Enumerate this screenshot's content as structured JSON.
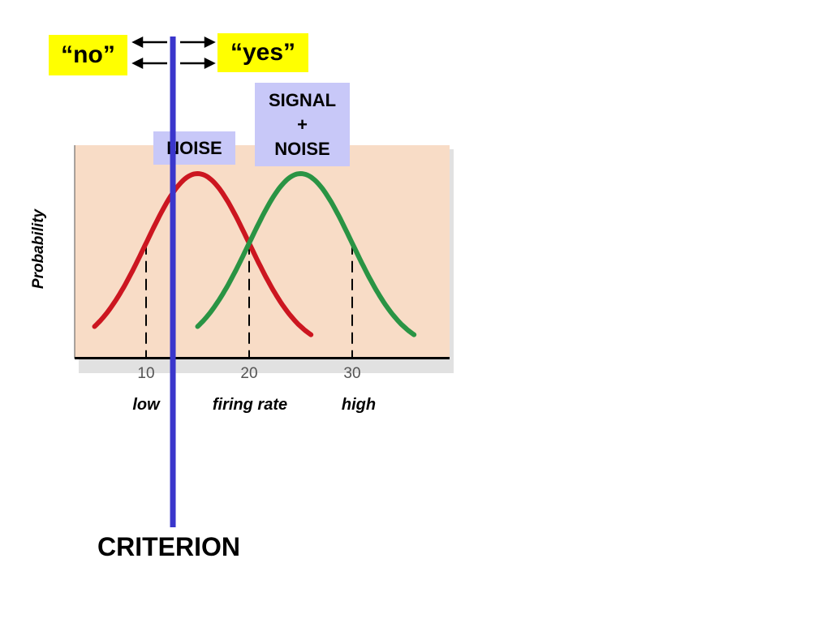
{
  "labels": {
    "no": "“no”",
    "yes": "“yes”",
    "criterion": "CRITERION",
    "axis_low": "low",
    "axis_mid": "firing rate",
    "axis_high": "high"
  },
  "colors": {
    "panel_bg": "#f8dcc6",
    "noise_curve": "#cc1620",
    "signal_curve": "#2a9444",
    "criterion_line": "#3a36cc",
    "answer_box": "#ffff00",
    "dist_label_box": "#c8c8f8"
  },
  "chart_data": {
    "type": "line",
    "title": "",
    "xlabel": "",
    "ylabel": "Probability",
    "x_ticks": [
      10,
      20,
      30
    ],
    "xlim": [
      3,
      39
    ],
    "ylim": [
      0,
      1
    ],
    "grid": false,
    "series": [
      {
        "name": "NOISE",
        "mean": 15,
        "sd": 5,
        "x_range": [
          5,
          26
        ]
      },
      {
        "name": "SIGNAL + NOISE",
        "name_lines": [
          "SIGNAL",
          "+",
          "NOISE"
        ],
        "mean": 25,
        "sd": 5,
        "x_range": [
          15,
          36
        ]
      }
    ],
    "dashed_markers_x": [
      10,
      20,
      30
    ],
    "criterion_x": 12.6
  }
}
